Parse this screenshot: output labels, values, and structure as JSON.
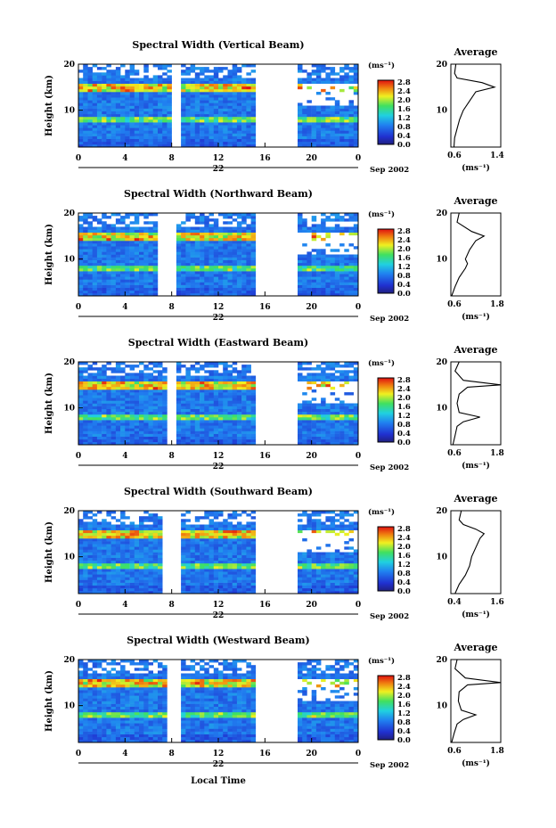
{
  "figure": {
    "y_axis_label": "Height (km)",
    "x_axis_label": "Local Time",
    "date_label": "Sep 2002",
    "units": "(ms⁻¹)",
    "average_title": "Average",
    "colorbar_ticks": [
      "2.8",
      "2.4",
      "2.0",
      "1.6",
      "1.2",
      "0.8",
      "0.4",
      "0.0"
    ],
    "x_ticks": [
      "0",
      "4",
      "8",
      "12",
      "16",
      "20",
      "0"
    ],
    "y_ticks": [
      "20",
      "10"
    ],
    "colors": {
      "low": "#3030c8",
      "mid": "#20a0e0",
      "high": "#f0e020",
      "peak": "#e01010",
      "gap": "#ffffff"
    }
  },
  "chart_data": [
    {
      "type": "heatmap",
      "title": "Spectral Width (Vertical Beam)",
      "day_label": "22",
      "ylim": [
        2,
        20
      ],
      "xlim": [
        0,
        24
      ],
      "data_gaps_hours": [
        [
          8,
          8.8
        ],
        [
          15.4,
          18.9
        ]
      ],
      "average": {
        "xlabel": "(ms⁻¹)",
        "xticks": [
          "0.6",
          "1.4"
        ],
        "xlim": [
          0.6,
          1.4
        ],
        "profile": [
          [
            2,
            0.65
          ],
          [
            4,
            0.66
          ],
          [
            6,
            0.7
          ],
          [
            8,
            0.74
          ],
          [
            10,
            0.8
          ],
          [
            12,
            0.9
          ],
          [
            14,
            1.0
          ],
          [
            15,
            1.3
          ],
          [
            16,
            1.1
          ],
          [
            17,
            0.7
          ],
          [
            18,
            0.66
          ],
          [
            20,
            0.68
          ]
        ]
      }
    },
    {
      "type": "heatmap",
      "title": "Spectral Width (Northward Beam)",
      "day_label": "22",
      "ylim": [
        2,
        20
      ],
      "xlim": [
        0,
        24
      ],
      "data_gaps_hours": [
        [
          7,
          8.5
        ],
        [
          15.4,
          18.9
        ]
      ],
      "average": {
        "xlabel": "(ms⁻¹)",
        "xticks": [
          "0.6",
          "1.8"
        ],
        "xlim": [
          0.6,
          1.8
        ],
        "profile": [
          [
            2,
            0.62
          ],
          [
            4,
            0.7
          ],
          [
            6,
            0.8
          ],
          [
            8,
            0.95
          ],
          [
            9,
            1.0
          ],
          [
            10,
            0.95
          ],
          [
            12,
            1.05
          ],
          [
            14,
            1.2
          ],
          [
            15,
            1.4
          ],
          [
            16,
            1.1
          ],
          [
            18,
            0.75
          ],
          [
            20,
            0.8
          ]
        ]
      }
    },
    {
      "type": "heatmap",
      "title": "Spectral Width (Eastward Beam)",
      "day_label": "22",
      "ylim": [
        2,
        20
      ],
      "xlim": [
        0,
        24
      ],
      "data_gaps_hours": [
        [
          7.5,
          8.5
        ],
        [
          15.4,
          18.9
        ]
      ],
      "average": {
        "xlabel": "(ms⁻¹)",
        "xticks": [
          "0.6",
          "1.8"
        ],
        "xlim": [
          0.6,
          1.8
        ],
        "profile": [
          [
            2,
            0.65
          ],
          [
            4,
            0.7
          ],
          [
            6,
            0.75
          ],
          [
            7,
            0.9
          ],
          [
            8,
            1.3
          ],
          [
            9,
            0.8
          ],
          [
            11,
            0.75
          ],
          [
            13,
            0.8
          ],
          [
            14.5,
            1.0
          ],
          [
            15,
            1.8
          ],
          [
            16,
            0.9
          ],
          [
            18,
            0.7
          ],
          [
            20,
            0.8
          ]
        ]
      }
    },
    {
      "type": "heatmap",
      "title": "Spectral Width (Southward Beam)",
      "day_label": "22",
      "ylim": [
        2,
        20
      ],
      "xlim": [
        0,
        24
      ],
      "data_gaps_hours": [
        [
          7.2,
          8.6
        ],
        [
          15.4,
          18.9
        ]
      ],
      "average": {
        "xlabel": "(ms⁻¹)",
        "xticks": [
          "0.4",
          "1.6"
        ],
        "xlim": [
          0.4,
          1.6
        ],
        "profile": [
          [
            2,
            0.5
          ],
          [
            4,
            0.6
          ],
          [
            6,
            0.75
          ],
          [
            8,
            0.85
          ],
          [
            10,
            0.9
          ],
          [
            12,
            1.0
          ],
          [
            14,
            1.1
          ],
          [
            15,
            1.2
          ],
          [
            16,
            1.0
          ],
          [
            17,
            0.7
          ],
          [
            18,
            0.6
          ],
          [
            20,
            0.65
          ]
        ]
      }
    },
    {
      "type": "heatmap",
      "title": "Spectral Width (Westward Beam)",
      "day_label": "22",
      "ylim": [
        2,
        20
      ],
      "xlim": [
        0,
        24
      ],
      "data_gaps_hours": [
        [
          7.8,
          8.6
        ],
        [
          15.4,
          18.9
        ]
      ],
      "average": {
        "xlabel": "(ms⁻¹)",
        "xticks": [
          "0.6",
          "1.8"
        ],
        "xlim": [
          0.6,
          1.8
        ],
        "profile": [
          [
            2,
            0.62
          ],
          [
            4,
            0.68
          ],
          [
            6,
            0.75
          ],
          [
            7,
            0.9
          ],
          [
            8,
            1.2
          ],
          [
            9,
            0.85
          ],
          [
            11,
            0.78
          ],
          [
            13,
            0.8
          ],
          [
            14.5,
            1.0
          ],
          [
            15,
            1.8
          ],
          [
            16,
            0.95
          ],
          [
            18,
            0.7
          ],
          [
            20,
            0.75
          ]
        ]
      }
    }
  ]
}
